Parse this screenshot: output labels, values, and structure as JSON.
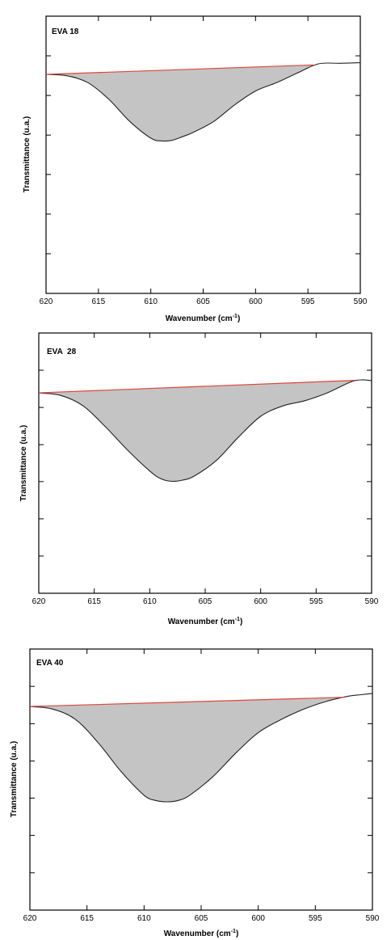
{
  "chart_data": [
    {
      "type": "line",
      "title": "EVA 18",
      "xlabel": "Wavenumber (cm",
      "xlabel_sup": "-1",
      "xlabel_suffix": ")",
      "ylabel": "Transmittance (u.a.)",
      "xlim": [
        620,
        590
      ],
      "ylim": [
        0,
        1
      ],
      "x_ticks": [
        620,
        615,
        610,
        605,
        600,
        595,
        590
      ],
      "y_ticks": [
        0.143,
        0.286,
        0.429,
        0.571,
        0.714,
        0.857
      ],
      "grid": false,
      "series": [
        {
          "role": "spectrum",
          "color": "#222222",
          "x": [
            620,
            618,
            616,
            614,
            612,
            610,
            609,
            608,
            607,
            606,
            604,
            602,
            600,
            598,
            596,
            594,
            592,
            590
          ],
          "y": [
            0.79,
            0.785,
            0.76,
            0.7,
            0.62,
            0.56,
            0.55,
            0.552,
            0.565,
            0.58,
            0.62,
            0.68,
            0.73,
            0.76,
            0.795,
            0.828,
            0.83,
            0.832
          ]
        },
        {
          "role": "baseline",
          "color": "#e0443a",
          "x": [
            620,
            594.5
          ],
          "y": [
            0.79,
            0.824
          ]
        }
      ],
      "shaded_region": "between spectrum and baseline"
    },
    {
      "type": "line",
      "title": "EVA  28",
      "xlabel": "Wavenumber (cm",
      "xlabel_sup": "-1",
      "xlabel_suffix": ")",
      "ylabel": "Transmittance (u.a.)",
      "xlim": [
        620,
        590
      ],
      "ylim": [
        0,
        1
      ],
      "x_ticks": [
        620,
        615,
        610,
        605,
        600,
        595,
        590
      ],
      "y_ticks": [
        0.143,
        0.286,
        0.429,
        0.571,
        0.714,
        0.857
      ],
      "grid": false,
      "series": [
        {
          "role": "spectrum",
          "color": "#222222",
          "x": [
            620,
            618,
            616,
            614,
            612,
            610,
            609,
            608,
            607,
            606,
            604,
            602,
            600,
            598,
            596,
            594,
            592,
            591,
            590
          ],
          "y": [
            0.77,
            0.76,
            0.72,
            0.64,
            0.55,
            0.47,
            0.44,
            0.43,
            0.435,
            0.45,
            0.51,
            0.6,
            0.68,
            0.72,
            0.74,
            0.77,
            0.81,
            0.82,
            0.817
          ]
        },
        {
          "role": "baseline",
          "color": "#e0443a",
          "x": [
            620,
            591.5
          ],
          "y": [
            0.77,
            0.818
          ]
        }
      ],
      "shaded_region": "between spectrum and baseline"
    },
    {
      "type": "line",
      "title": "EVA 40",
      "xlabel": "Wavenumber (cm",
      "xlabel_sup": "-1",
      "xlabel_suffix": ")",
      "ylabel": "Transmittance (u.a.)",
      "xlim": [
        620,
        590
      ],
      "ylim": [
        0,
        1
      ],
      "x_ticks": [
        620,
        615,
        610,
        605,
        600,
        595,
        590
      ],
      "y_ticks": [
        0.143,
        0.286,
        0.429,
        0.571,
        0.714,
        0.857
      ],
      "grid": false,
      "series": [
        {
          "role": "spectrum",
          "color": "#222222",
          "x": [
            620,
            618,
            616,
            614,
            612,
            610,
            609,
            608,
            607,
            606,
            604,
            602,
            600,
            598,
            596,
            594,
            592,
            591,
            590
          ],
          "y": [
            0.78,
            0.77,
            0.73,
            0.64,
            0.53,
            0.44,
            0.42,
            0.415,
            0.42,
            0.44,
            0.51,
            0.6,
            0.68,
            0.73,
            0.77,
            0.8,
            0.82,
            0.825,
            0.83
          ]
        },
        {
          "role": "baseline",
          "color": "#e0443a",
          "x": [
            620,
            592.5
          ],
          "y": [
            0.78,
            0.815
          ]
        }
      ],
      "shaded_region": "between spectrum and baseline"
    }
  ]
}
